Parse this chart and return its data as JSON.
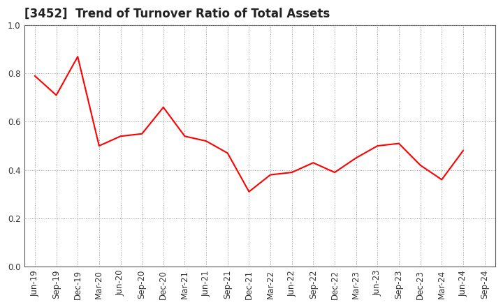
{
  "title": "[3452]  Trend of Turnover Ratio of Total Assets",
  "x_labels": [
    "Jun-19",
    "Sep-19",
    "Dec-19",
    "Mar-20",
    "Jun-20",
    "Sep-20",
    "Dec-20",
    "Mar-21",
    "Jun-21",
    "Sep-21",
    "Dec-21",
    "Mar-22",
    "Jun-22",
    "Sep-22",
    "Dec-22",
    "Mar-23",
    "Jun-23",
    "Sep-23",
    "Dec-23",
    "Mar-24",
    "Jun-24",
    "Sep-24"
  ],
  "values": [
    0.79,
    0.71,
    0.87,
    0.5,
    0.54,
    0.55,
    0.66,
    0.54,
    0.52,
    0.47,
    0.31,
    0.38,
    0.39,
    0.43,
    0.39,
    0.45,
    0.5,
    0.51,
    0.42,
    0.36,
    0.48,
    null
  ],
  "line_color": "#FF0000",
  "background_color": "#FFFFFF",
  "plot_bg_color": "#FFFFFF",
  "ylim": [
    0.0,
    1.0
  ],
  "yticks": [
    0.0,
    0.2,
    0.4,
    0.6,
    0.8,
    1.0
  ],
  "title_fontsize": 12,
  "tick_fontsize": 8.5,
  "grid_color": "#999999",
  "line_width": 1.5
}
